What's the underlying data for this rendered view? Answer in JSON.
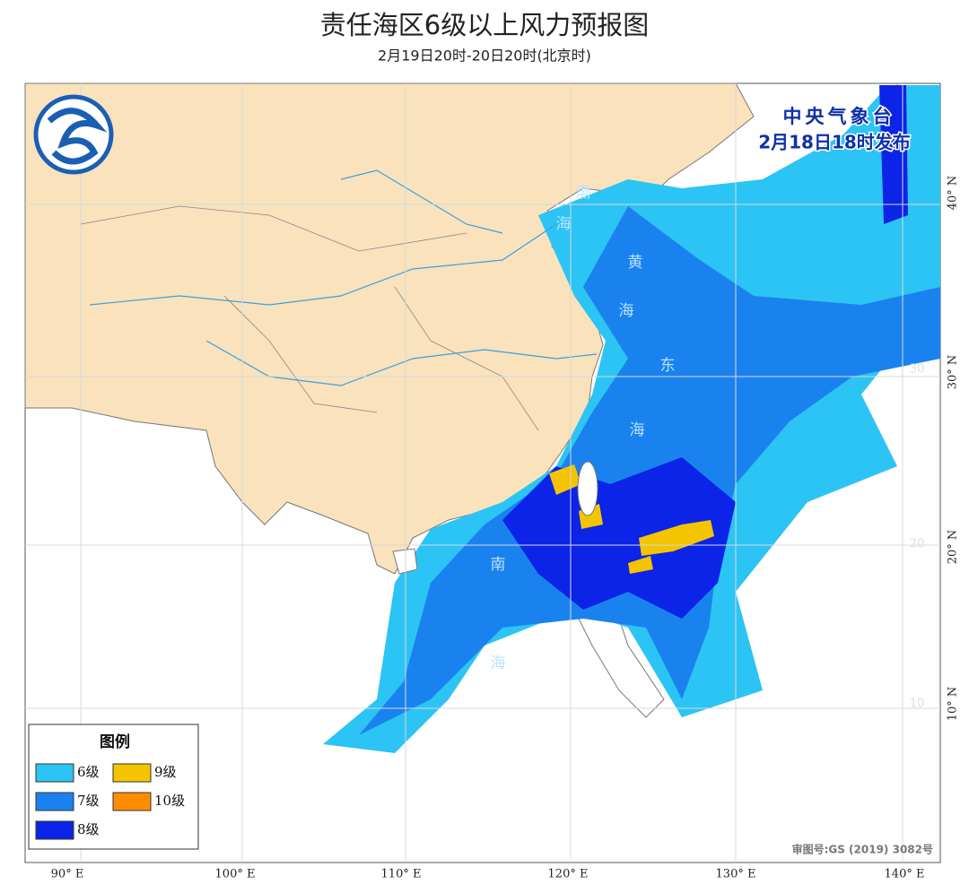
{
  "header": {
    "title": "责任海区6级以上风力预报图",
    "subtitle": "2月19日20时-20日20时(北京时)"
  },
  "issuer": {
    "name": "中央气象台",
    "issued": "2月18日18时发布"
  },
  "legend": {
    "title": "图例",
    "items": [
      {
        "label": "6级",
        "color": "#2cc4f4"
      },
      {
        "label": "7级",
        "color": "#1a82ee"
      },
      {
        "label": "8级",
        "color": "#0b24e8"
      },
      {
        "label": "9级",
        "color": "#f5c400"
      },
      {
        "label": "10级",
        "color": "#ff8c00"
      }
    ]
  },
  "map": {
    "lon_labels": [
      "90° E",
      "100° E",
      "110° E",
      "120° E",
      "130° E",
      "140° E"
    ],
    "lat_labels": [
      "40° N",
      "30° N",
      "20° N",
      "10° N"
    ],
    "grid_labels": [
      "30",
      "20",
      "10"
    ],
    "sea_labels": [
      [
        "渤",
        "海"
      ],
      [
        "黄",
        "海"
      ],
      [
        "东",
        "海"
      ],
      [
        "南",
        "海"
      ]
    ],
    "review_number": "审图号:GS (2019) 3082号"
  }
}
